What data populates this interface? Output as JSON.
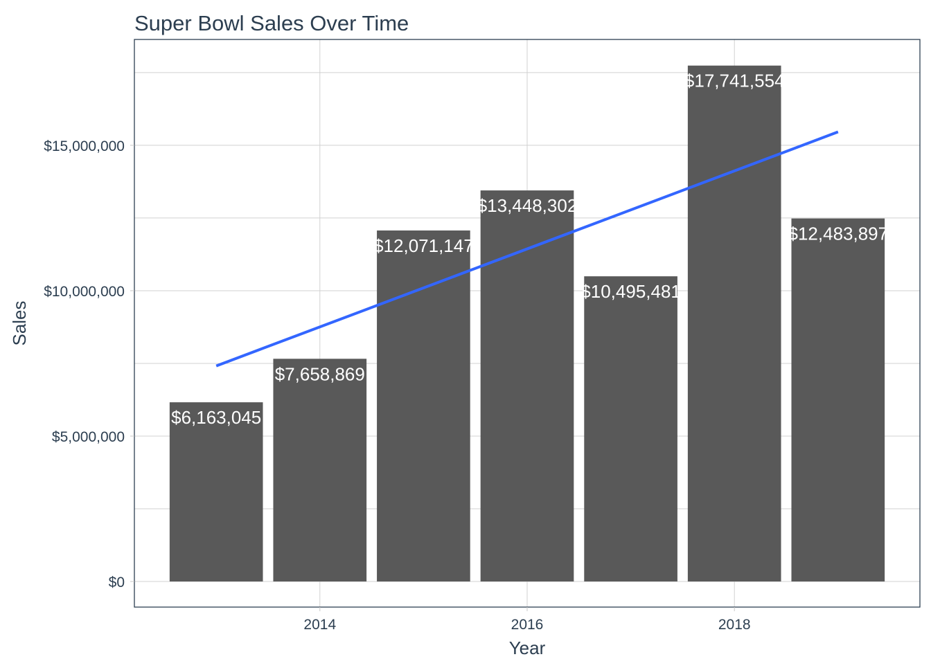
{
  "chart_data": {
    "type": "bar",
    "title": "Super Bowl Sales Over Time",
    "xlabel": "Year",
    "ylabel": "Sales",
    "categories": [
      2013,
      2014,
      2015,
      2016,
      2017,
      2018,
      2019
    ],
    "values": [
      6163045,
      7658869,
      12071147,
      13448302,
      10495481,
      17741554,
      12483897
    ],
    "data_labels": [
      "$6,163,045",
      "$7,658,869",
      "$12,071,147",
      "$13,448,302",
      "$10,495,481",
      "$17,741,554",
      "$12,483,897"
    ],
    "x_ticks": [
      2014,
      2016,
      2018
    ],
    "x_tick_labels": [
      "2014",
      "2016",
      "2018"
    ],
    "y_ticks": [
      0,
      5000000,
      10000000,
      15000000
    ],
    "y_tick_labels": [
      "$0",
      "$5,000,000",
      "$10,000,000",
      "$15,000,000"
    ],
    "xlim": [
      2012.21,
      2019.79
    ],
    "ylim": [
      -880000,
      18640000
    ],
    "grid": true,
    "trend_line": {
      "type": "linear",
      "x_range": [
        2013,
        2019
      ],
      "color": "#3366FF"
    },
    "colors": {
      "bar": "#595959",
      "label": "#FFFFFF",
      "text": "#2C3E50",
      "grid": "#D0D0D0"
    }
  }
}
